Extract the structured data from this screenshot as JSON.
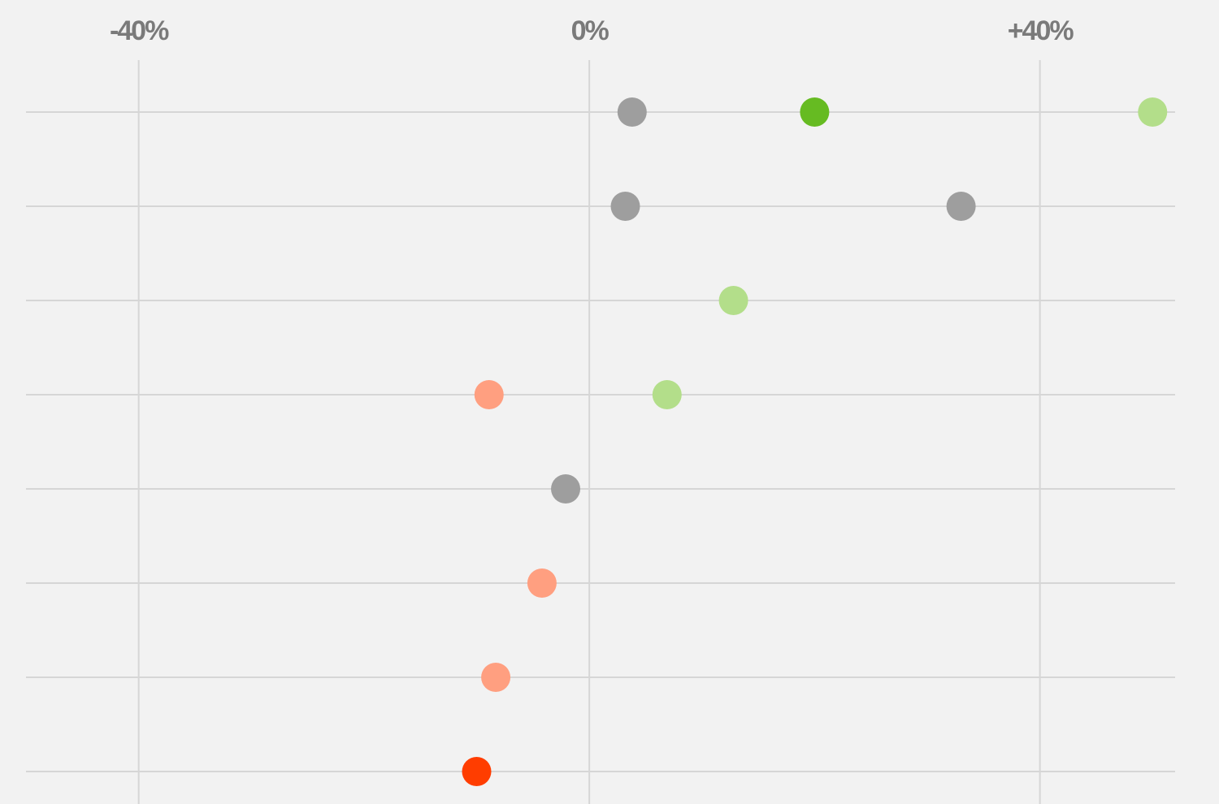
{
  "chart_data": {
    "type": "dot",
    "categories": [
      null,
      null,
      null,
      null,
      null,
      null,
      null,
      null
    ],
    "rows": [
      [
        {
          "value": 3.8,
          "color": "#9e9e9e"
        },
        {
          "value": 20,
          "color": "#66bb22"
        },
        {
          "value": 50,
          "color": "#b3de8a"
        }
      ],
      [
        {
          "value": 3.2,
          "color": "#9e9e9e"
        },
        {
          "value": 33,
          "color": "#9e9e9e"
        }
      ],
      [
        {
          "value": 12.8,
          "color": "#b3de8a"
        }
      ],
      [
        {
          "value": -8.9,
          "color": "#ff9f80"
        },
        {
          "value": 6.9,
          "color": "#b3de8a"
        }
      ],
      [
        {
          "value": -2.1,
          "color": "#9e9e9e"
        }
      ],
      [
        {
          "value": -4.2,
          "color": "#ff9f80"
        }
      ],
      [
        {
          "value": -8.3,
          "color": "#ff9f80"
        }
      ],
      [
        {
          "value": -10,
          "color": "#ff3d00"
        }
      ]
    ],
    "xlim": [
      -50,
      52
    ],
    "xticks": [
      {
        "value": -40,
        "label": "-40%"
      },
      {
        "value": 0,
        "label": "0%"
      },
      {
        "value": 40,
        "label": "+40%"
      }
    ],
    "grid": true
  }
}
